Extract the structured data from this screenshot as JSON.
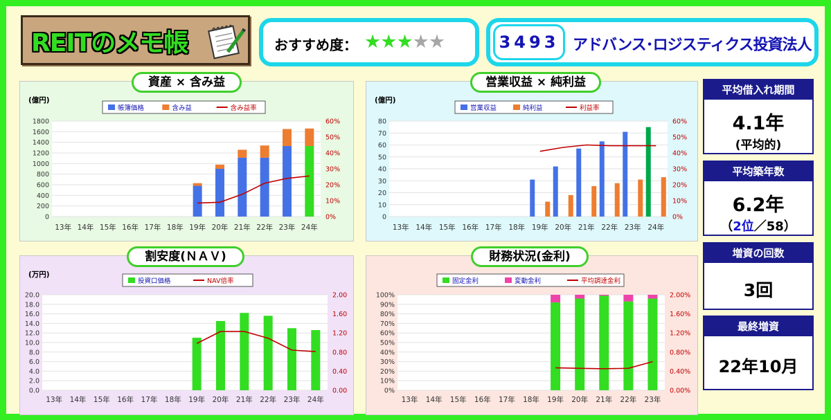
{
  "header": {
    "logo_text": "REITのメモ帳",
    "rating_label": "おすすめ度：",
    "rating_stars": 3,
    "rating_max": 5,
    "code": "3493",
    "fund_name": "アドバンス･ロジスティクス投資法人"
  },
  "sidebar": [
    {
      "label": "平均借入れ期間",
      "value": "4.1年",
      "note": "(平均的)"
    },
    {
      "label": "平均築年数",
      "value": "6.2年",
      "note_pre": "（",
      "note_highlight": "2位",
      "note_post": "／58）"
    },
    {
      "label": "増資の回数",
      "value": "3回"
    },
    {
      "label": "最終増資",
      "value": "22年10月"
    }
  ],
  "colors": {
    "blue": "#4472e6",
    "orange": "#ed7d31",
    "red": "#c00000",
    "green": "#33dd22",
    "magenta": "#ee44aa",
    "dark_green": "#00a84a",
    "navy": "#1b1b8c"
  },
  "chart_data": [
    {
      "type": "bar",
      "id": "assets",
      "title": "資産 × 含み益",
      "unit_label": "(億円)",
      "categories": [
        "13年",
        "14年",
        "15年",
        "16年",
        "17年",
        "18年",
        "19年",
        "20年",
        "21年",
        "22年",
        "23年",
        "24年"
      ],
      "stacked": true,
      "series": [
        {
          "name": "帳簿価格",
          "values": [
            null,
            null,
            null,
            null,
            null,
            null,
            580,
            900,
            1110,
            1110,
            1330,
            1330
          ]
        },
        {
          "name": "含み益",
          "values": [
            null,
            null,
            null,
            null,
            null,
            null,
            50,
            80,
            150,
            230,
            320,
            330
          ]
        },
        {
          "name": "含み益率",
          "type": "line",
          "axis": "right",
          "values": [
            null,
            null,
            null,
            null,
            null,
            null,
            8.5,
            9,
            14,
            21,
            24,
            25.5
          ]
        }
      ],
      "highlight_last": true,
      "ylim": [
        0,
        1800
      ],
      "yticks": [
        "0",
        "200",
        "400",
        "600",
        "800",
        "1000",
        "1200",
        "1400",
        "1600",
        "1800"
      ],
      "y2lim": [
        0,
        60
      ],
      "y2ticks": [
        "0%",
        "10%",
        "20%",
        "30%",
        "40%",
        "50%",
        "60%"
      ]
    },
    {
      "type": "bar",
      "id": "income",
      "title": "営業収益 × 純利益",
      "unit_label": "(億円)",
      "categories": [
        "13年",
        "14年",
        "15年",
        "16年",
        "17年",
        "18年",
        "19年",
        "20年",
        "21年",
        "22年",
        "23年",
        "24年"
      ],
      "stacked": false,
      "series": [
        {
          "name": "営業収益",
          "values": [
            null,
            null,
            null,
            null,
            null,
            null,
            31,
            42,
            57,
            63,
            71,
            75
          ]
        },
        {
          "name": "純利益",
          "values": [
            null,
            null,
            null,
            null,
            null,
            null,
            12.5,
            18,
            25.5,
            28,
            31,
            33
          ]
        },
        {
          "name": "利益率",
          "type": "line",
          "axis": "right",
          "values": [
            null,
            null,
            null,
            null,
            null,
            null,
            41,
            43.5,
            45,
            44.5,
            44.5,
            44.5
          ]
        }
      ],
      "highlight_last": true,
      "ylim": [
        0,
        80
      ],
      "yticks": [
        "0",
        "10",
        "20",
        "30",
        "40",
        "50",
        "60",
        "70",
        "80"
      ],
      "y2lim": [
        0,
        60
      ],
      "y2ticks": [
        "0%",
        "10%",
        "20%",
        "30%",
        "40%",
        "50%",
        "60%"
      ]
    },
    {
      "type": "bar",
      "id": "nav",
      "title": "割安度(ＮＡＶ)",
      "unit_label": "(万円)",
      "categories": [
        "13年",
        "14年",
        "15年",
        "16年",
        "17年",
        "18年",
        "19年",
        "20年",
        "21年",
        "22年",
        "23年",
        "24年"
      ],
      "stacked": false,
      "series": [
        {
          "name": "投資口価格",
          "values": [
            null,
            null,
            null,
            null,
            null,
            null,
            11,
            14.5,
            16.2,
            15.6,
            13,
            12.6
          ]
        },
        {
          "name": "NAV倍率",
          "type": "line",
          "axis": "right",
          "values": [
            null,
            null,
            null,
            null,
            null,
            null,
            0.98,
            1.23,
            1.23,
            1.09,
            0.84,
            0.81
          ]
        }
      ],
      "ylim": [
        0,
        20
      ],
      "yticks": [
        "0.0",
        "2.0",
        "4.0",
        "6.0",
        "8.0",
        "10.0",
        "12.0",
        "14.0",
        "16.0",
        "18.0",
        "20.0"
      ],
      "y2lim": [
        0,
        2
      ],
      "y2ticks": [
        "0.00",
        "0.40",
        "0.80",
        "1.20",
        "1.60",
        "2.00"
      ]
    },
    {
      "type": "bar",
      "id": "finance",
      "title": "財務状況(金利)",
      "categories": [
        "13年",
        "14年",
        "15年",
        "16年",
        "17年",
        "18年",
        "19年",
        "20年",
        "21年",
        "22年",
        "23年"
      ],
      "stacked": true,
      "series": [
        {
          "name": "固定金利",
          "values": [
            null,
            null,
            null,
            null,
            null,
            null,
            92,
            96,
            99,
            93,
            96
          ]
        },
        {
          "name": "変動金利",
          "values": [
            null,
            null,
            null,
            null,
            null,
            null,
            8,
            4,
            1,
            7,
            4
          ]
        },
        {
          "name": "平均調達金利",
          "type": "line",
          "axis": "right",
          "values": [
            null,
            null,
            null,
            null,
            null,
            null,
            0.47,
            0.46,
            0.45,
            0.46,
            0.6
          ]
        }
      ],
      "ylim": [
        0,
        100
      ],
      "yticks": [
        "0%",
        "10%",
        "20%",
        "30%",
        "40%",
        "50%",
        "60%",
        "70%",
        "80%",
        "90%",
        "100%"
      ],
      "y2lim": [
        0,
        2
      ],
      "y2ticks": [
        "0.00%",
        "0.40%",
        "0.80%",
        "1.20%",
        "1.60%",
        "2.00%"
      ]
    }
  ]
}
